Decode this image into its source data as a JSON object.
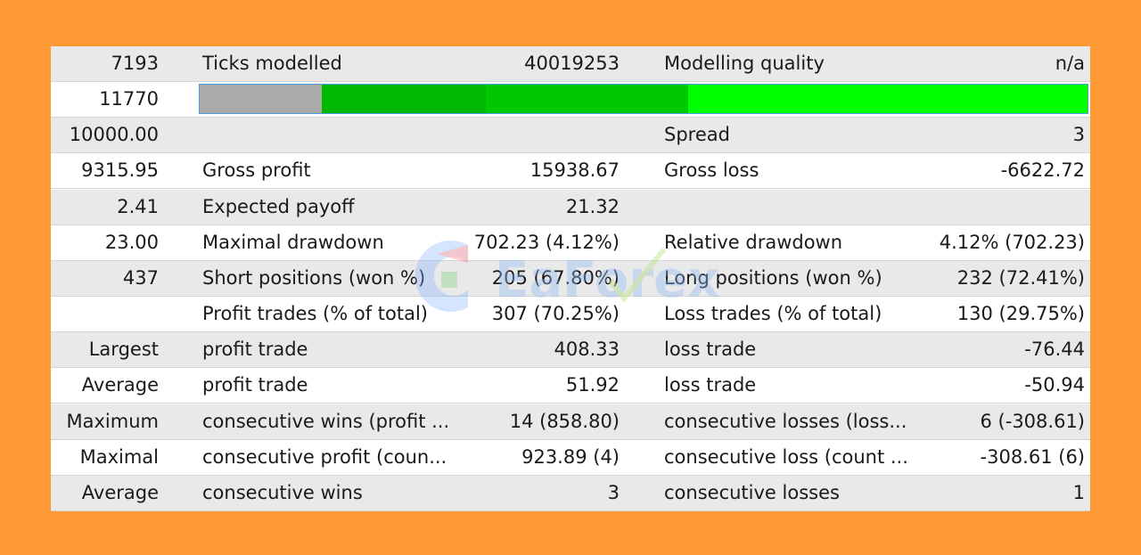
{
  "rows": [
    {
      "c1": "7193",
      "c2": "Ticks modelled",
      "c3": "40019253",
      "c4": "Modelling quality",
      "c5": "n/a"
    },
    {
      "c1": "11770",
      "progress": {
        "segments": [
          {
            "fraction": 0.138,
            "color": "#AAAAAA"
          },
          {
            "fraction": 0.184,
            "color": "#00B800"
          },
          {
            "fraction": 0.228,
            "color": "#00C800"
          },
          {
            "fraction": 0.45,
            "color": "#00FF00"
          }
        ]
      }
    },
    {
      "c1": "10000.00",
      "c2": "",
      "c3": "",
      "c4": "Spread",
      "c5": "3"
    },
    {
      "c1": "9315.95",
      "c2": "Gross profit",
      "c3": "15938.67",
      "c4": "Gross loss",
      "c5": "-6622.72"
    },
    {
      "c1": "2.41",
      "c2": "Expected payoff",
      "c3": "21.32",
      "c4": "",
      "c5": ""
    },
    {
      "c1": "23.00",
      "c2": "Maximal drawdown",
      "c3": "702.23 (4.12%)",
      "c4": "Relative drawdown",
      "c5": "4.12% (702.23)"
    },
    {
      "c1": "437",
      "c2": "Short positions (won %)",
      "c3": "205 (67.80%)",
      "c4": "Long positions (won %)",
      "c5": "232 (72.41%)"
    },
    {
      "c1": "",
      "c2": "Profit trades (% of total)",
      "c3": "307 (70.25%)",
      "c4": "Loss trades (% of total)",
      "c5": "130 (29.75%)"
    },
    {
      "c1": "Largest",
      "c2": "profit trade",
      "c3": "408.33",
      "c4": "loss trade",
      "c5": "-76.44"
    },
    {
      "c1": "Average",
      "c2": "profit trade",
      "c3": "51.92",
      "c4": "loss trade",
      "c5": "-50.94"
    },
    {
      "c1": "Maximum",
      "c2": "consecutive wins (profit ...",
      "c3": "14 (858.80)",
      "c4": "consecutive losses (loss...",
      "c5": "6 (-308.61)"
    },
    {
      "c1": "Maximal",
      "c2": "consecutive profit (coun...",
      "c3": "923.89 (4)",
      "c4": "consecutive loss (count ...",
      "c5": "-308.61 (6)"
    },
    {
      "c1": "Average",
      "c2": "consecutive wins",
      "c3": "3",
      "c4": "consecutive losses",
      "c5": "1"
    }
  ],
  "watermark": {
    "text": "EaForex"
  },
  "colors": {
    "background": "#FF9933",
    "row_gray": "#E9E9E9",
    "row_white": "#FFFFFF"
  }
}
